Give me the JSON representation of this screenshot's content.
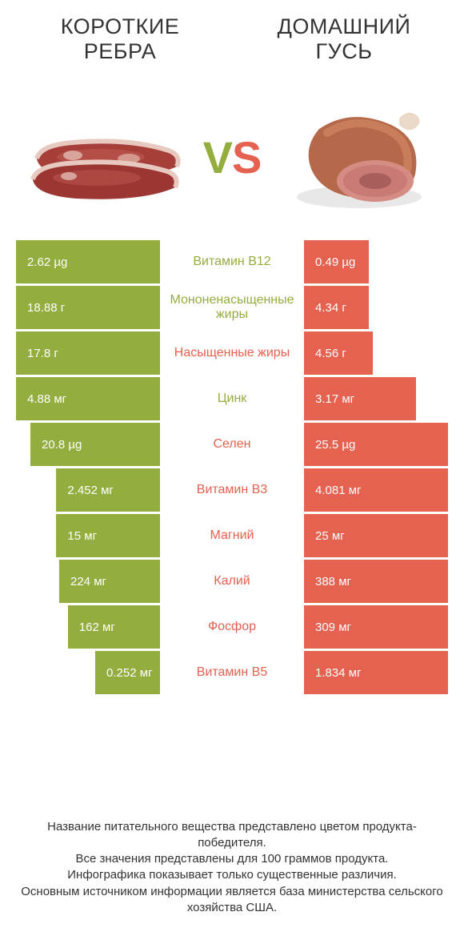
{
  "colors": {
    "left": "#94ad3f",
    "right": "#e4624f",
    "text": "#333333",
    "bg": "#ffffff"
  },
  "header": {
    "left_title_line1": "КОРОТКИЕ",
    "left_title_line2": "РЕБРА",
    "right_title_line1": "ДОМАШНИЙ",
    "right_title_line2": "ГУСЬ"
  },
  "vs": {
    "v": "V",
    "s": "S"
  },
  "rows": [
    {
      "label": "Витамин B12",
      "winner": "left",
      "left_val": "2.62 µg",
      "right_val": "0.49 µg",
      "left_w": 100,
      "right_w": 45
    },
    {
      "label": "Мононенасыщенные жиры",
      "winner": "left",
      "left_val": "18.88 г",
      "right_val": "4.34 г",
      "left_w": 100,
      "right_w": 45
    },
    {
      "label": "Насыщенные жиры",
      "winner": "right",
      "left_val": "17.8 г",
      "right_val": "4.56 г",
      "left_w": 100,
      "right_w": 48
    },
    {
      "label": "Цинк",
      "winner": "left",
      "left_val": "4.88 мг",
      "right_val": "3.17 мг",
      "left_w": 100,
      "right_w": 78
    },
    {
      "label": "Селен",
      "winner": "right",
      "left_val": "20.8 µg",
      "right_val": "25.5 µg",
      "left_w": 90,
      "right_w": 100
    },
    {
      "label": "Витамин B3",
      "winner": "right",
      "left_val": "2.452 мг",
      "right_val": "4.081 мг",
      "left_w": 72,
      "right_w": 100
    },
    {
      "label": "Магний",
      "winner": "right",
      "left_val": "15 мг",
      "right_val": "25 мг",
      "left_w": 72,
      "right_w": 100
    },
    {
      "label": "Калий",
      "winner": "right",
      "left_val": "224 мг",
      "right_val": "388 мг",
      "left_w": 70,
      "right_w": 100
    },
    {
      "label": "Фосфор",
      "winner": "right",
      "left_val": "162 мг",
      "right_val": "309 мг",
      "left_w": 64,
      "right_w": 100
    },
    {
      "label": "Витамин B5",
      "winner": "right",
      "left_val": "0.252 мг",
      "right_val": "1.834 мг",
      "left_w": 45,
      "right_w": 100
    }
  ],
  "notes": {
    "l1": "Название питательного вещества представлено цветом продукта-победителя.",
    "l2": "Все значения представлены для 100 граммов продукта.",
    "l3": "Инфографика показывает только существенные различия.",
    "l4": "Основным источником информации является база министерства сельского хозяйства США."
  }
}
